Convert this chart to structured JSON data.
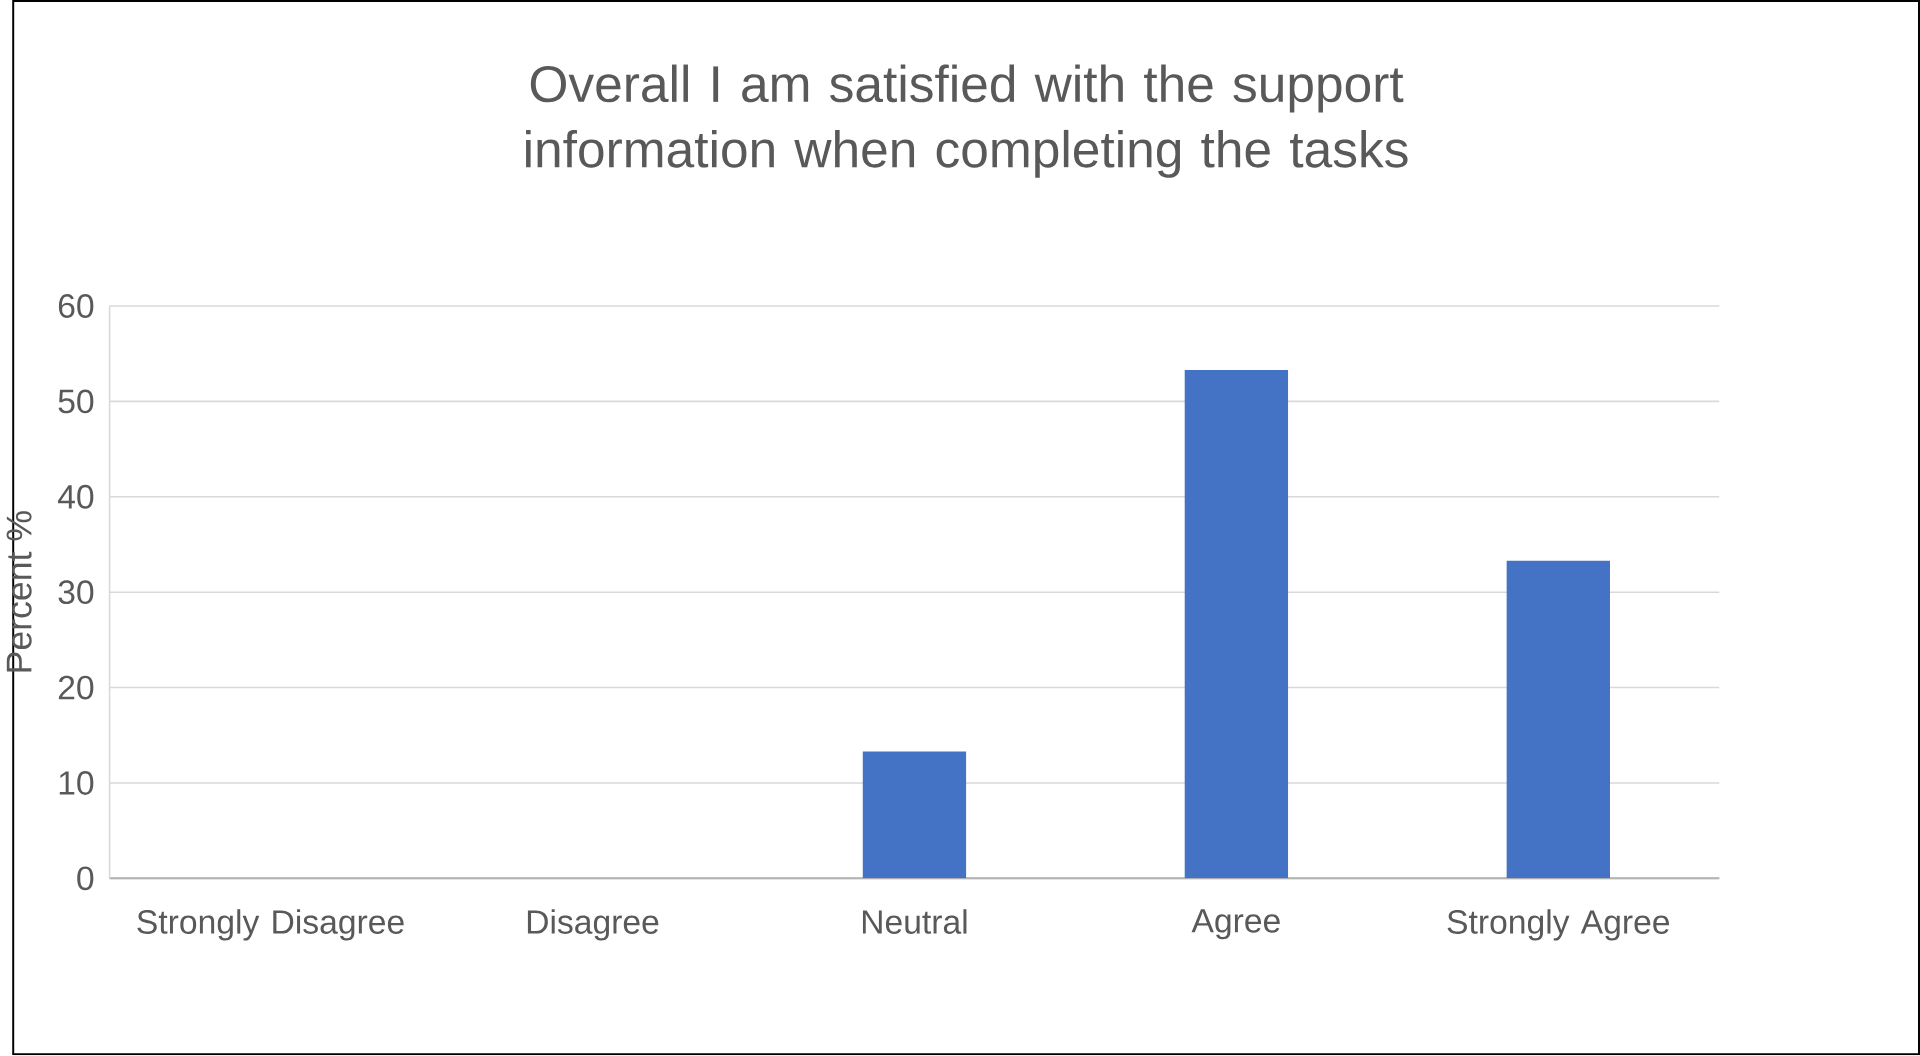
{
  "chart_data": {
    "type": "bar",
    "title": "Overall I am satisfied with the support information when completing the tasks",
    "ylabel": "Percent %",
    "categories": [
      "Strongly Disagree",
      "Disagree",
      "Neutral",
      "Agree",
      "Strongly Agree"
    ],
    "values": [
      0,
      0,
      13.3,
      53.3,
      33.3
    ],
    "color": "#4472c4",
    "ylim": [
      0,
      60
    ],
    "yticks": [
      0,
      10,
      20,
      30,
      40,
      50,
      60
    ],
    "grid": "y"
  }
}
